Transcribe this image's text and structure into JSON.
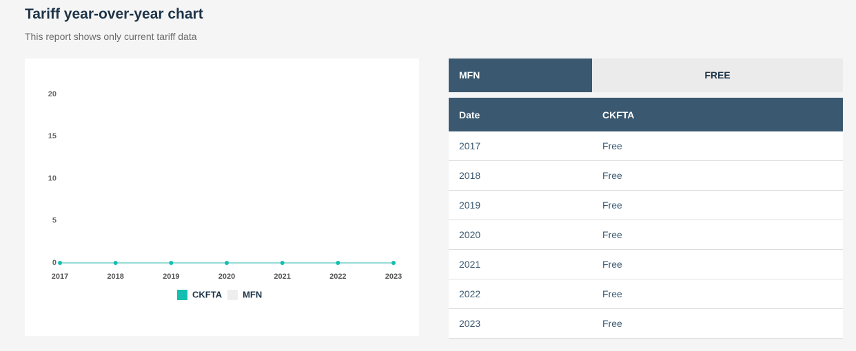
{
  "header": {
    "title": "Tariff year-over-year chart",
    "subtitle": "This report shows only current tariff data"
  },
  "chart_data": {
    "type": "line",
    "categories": [
      "2017",
      "2018",
      "2019",
      "2020",
      "2021",
      "2022",
      "2023"
    ],
    "series": [
      {
        "name": "CKFTA",
        "color": "#14bfb1",
        "values": [
          0,
          0,
          0,
          0,
          0,
          0,
          0
        ]
      },
      {
        "name": "MFN",
        "color": "#eeeeee",
        "values": [
          0,
          0,
          0,
          0,
          0,
          0,
          0
        ]
      }
    ],
    "ylim": [
      0,
      20
    ],
    "yticks": [
      0,
      5,
      10,
      15,
      20
    ],
    "grid": false
  },
  "tabs": [
    "MFN",
    "FREE"
  ],
  "table": {
    "columns": [
      "Date",
      "CKFTA"
    ],
    "rows": [
      [
        "2017",
        "Free"
      ],
      [
        "2018",
        "Free"
      ],
      [
        "2019",
        "Free"
      ],
      [
        "2020",
        "Free"
      ],
      [
        "2021",
        "Free"
      ],
      [
        "2022",
        "Free"
      ],
      [
        "2023",
        "Free"
      ]
    ]
  }
}
